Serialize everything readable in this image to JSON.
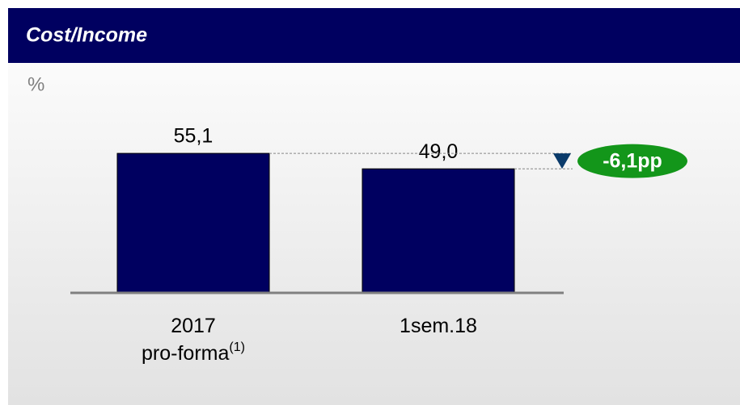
{
  "chart_data": {
    "type": "bar",
    "title": "Cost/Income",
    "y_label": "%",
    "categories": [
      "2017 pro-forma",
      "1sem.18"
    ],
    "category_notes": [
      "(1)",
      null
    ],
    "values": [
      55.1,
      49.0
    ],
    "value_labels": [
      "55,1",
      "49,0"
    ],
    "color": "#000060",
    "ylim": [
      0,
      87
    ],
    "annotation": {
      "label": "-6,1pp",
      "value": -6.1,
      "color": "#13961a"
    }
  }
}
